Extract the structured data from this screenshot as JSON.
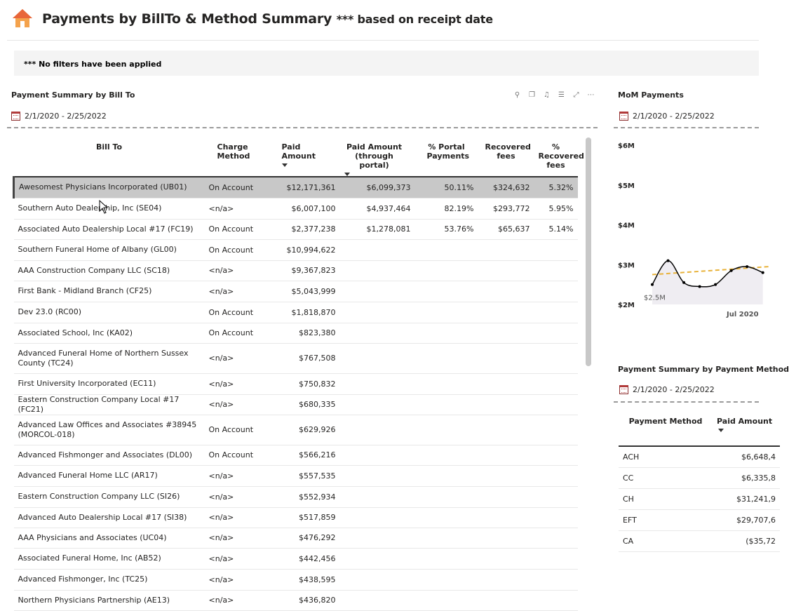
{
  "header": {
    "title_main": "Payments by BillTo & Method  Summary",
    "title_sub": "*** based on receipt date"
  },
  "filter_banner": {
    "text": "*** No filters have been applied"
  },
  "bill_to_visual": {
    "title": "Payment Summary by Bill To",
    "date_range": "2/1/2020 - 2/25/2022",
    "columns": [
      "Bill To",
      "Charge Method",
      "Paid Amount",
      "Paid Amount (through portal)",
      "% Portal Payments",
      "Recovered fees",
      "% Recovered fees"
    ],
    "rows": [
      {
        "bill_to": "Awesomest Physicians Incorporated (UB01)",
        "method": "On Account",
        "paid": "$12,171,361",
        "portal": "$6,099,373",
        "pct_portal": "50.11%",
        "recovered": "$324,632",
        "pct_recovered": "5.32%"
      },
      {
        "bill_to": "Southern Auto Dealership, Inc (SE04)",
        "method": "<n/a>",
        "paid": "$6,007,100",
        "portal": "$4,937,464",
        "pct_portal": "82.19%",
        "recovered": "$293,772",
        "pct_recovered": "5.95%"
      },
      {
        "bill_to": "Associated Auto Dealership Local #17 (FC19)",
        "method": "On Account",
        "paid": "$2,377,238",
        "portal": "$1,278,081",
        "pct_portal": "53.76%",
        "recovered": "$65,637",
        "pct_recovered": "5.14%"
      },
      {
        "bill_to": "Southern Funeral Home of Albany (GL00)",
        "method": "On Account",
        "paid": "$10,994,622",
        "portal": "",
        "pct_portal": "",
        "recovered": "",
        "pct_recovered": ""
      },
      {
        "bill_to": "AAA Construction Company LLC (SC18)",
        "method": "<n/a>",
        "paid": "$9,367,823",
        "portal": "",
        "pct_portal": "",
        "recovered": "",
        "pct_recovered": ""
      },
      {
        "bill_to": "First Bank - Midland Branch (CF25)",
        "method": "<n/a>",
        "paid": "$5,043,999",
        "portal": "",
        "pct_portal": "",
        "recovered": "",
        "pct_recovered": ""
      },
      {
        "bill_to": "Dev 23.0 (RC00)",
        "method": "On Account",
        "paid": "$1,818,870",
        "portal": "",
        "pct_portal": "",
        "recovered": "",
        "pct_recovered": ""
      },
      {
        "bill_to": "Associated School, Inc (KA02)",
        "method": "On Account",
        "paid": "$823,380",
        "portal": "",
        "pct_portal": "",
        "recovered": "",
        "pct_recovered": ""
      },
      {
        "bill_to": "Advanced Funeral Home of Northern Sussex County (TC24)",
        "method": "<n/a>",
        "paid": "$767,508",
        "portal": "",
        "pct_portal": "",
        "recovered": "",
        "pct_recovered": ""
      },
      {
        "bill_to": "First University Incorporated (EC11)",
        "method": "<n/a>",
        "paid": "$750,832",
        "portal": "",
        "pct_portal": "",
        "recovered": "",
        "pct_recovered": ""
      },
      {
        "bill_to": "Eastern Construction Company Local #17 (FC21)",
        "method": "<n/a>",
        "paid": "$680,335",
        "portal": "",
        "pct_portal": "",
        "recovered": "",
        "pct_recovered": ""
      },
      {
        "bill_to": "Advanced Law Offices and Associates #38945 (MORCOL-018)",
        "method": "On Account",
        "paid": "$629,926",
        "portal": "",
        "pct_portal": "",
        "recovered": "",
        "pct_recovered": ""
      },
      {
        "bill_to": "Advanced Fishmonger and Associates (DL00)",
        "method": "On Account",
        "paid": "$566,216",
        "portal": "",
        "pct_portal": "",
        "recovered": "",
        "pct_recovered": ""
      },
      {
        "bill_to": "Advanced Funeral Home LLC (AR17)",
        "method": "<n/a>",
        "paid": "$557,535",
        "portal": "",
        "pct_portal": "",
        "recovered": "",
        "pct_recovered": ""
      },
      {
        "bill_to": "Eastern Construction Company LLC (SI26)",
        "method": "<n/a>",
        "paid": "$552,934",
        "portal": "",
        "pct_portal": "",
        "recovered": "",
        "pct_recovered": ""
      },
      {
        "bill_to": "Advanced Auto Dealership Local #17 (SI38)",
        "method": "<n/a>",
        "paid": "$517,859",
        "portal": "",
        "pct_portal": "",
        "recovered": "",
        "pct_recovered": ""
      },
      {
        "bill_to": "AAA Physicians and Associates (UC04)",
        "method": "<n/a>",
        "paid": "$476,292",
        "portal": "",
        "pct_portal": "",
        "recovered": "",
        "pct_recovered": ""
      },
      {
        "bill_to": "Associated Funeral Home, Inc (AB52)",
        "method": "<n/a>",
        "paid": "$442,456",
        "portal": "",
        "pct_portal": "",
        "recovered": "",
        "pct_recovered": ""
      },
      {
        "bill_to": "Advanced Fishmonger, Inc (TC25)",
        "method": "<n/a>",
        "paid": "$438,595",
        "portal": "",
        "pct_portal": "",
        "recovered": "",
        "pct_recovered": ""
      },
      {
        "bill_to": "Northern Physicians Partnership (AE13)",
        "method": "<n/a>",
        "paid": "$436,820",
        "portal": "",
        "pct_portal": "",
        "recovered": "",
        "pct_recovered": ""
      }
    ]
  },
  "mom_visual": {
    "title": "MoM Payments",
    "date_range": "2/1/2020 - 2/25/2022"
  },
  "chart_data": {
    "type": "line",
    "y_ticks": [
      "$6M",
      "$5M",
      "$4M",
      "$3M",
      "$2M"
    ],
    "ylim": [
      2,
      6
    ],
    "x_tick_label": "Jul 2020",
    "data_label": "$2.5M",
    "series": [
      {
        "values": [
          2.5,
          3.1,
          2.55,
          2.45,
          2.5,
          2.85,
          2.95,
          2.8
        ]
      }
    ],
    "trend": [
      2.75,
      2.95
    ],
    "colors": {
      "line": "#000000",
      "trend": "#E8B23A",
      "area": "#efedf2"
    }
  },
  "method_visual": {
    "title": "Payment Summary by Payment Method",
    "date_range": "2/1/2020 - 2/25/2022",
    "columns": [
      "Payment Method",
      "Paid Amount"
    ],
    "rows": [
      {
        "method": "ACH",
        "paid": "$6,648,4"
      },
      {
        "method": "CC",
        "paid": "$6,335,8"
      },
      {
        "method": "CH",
        "paid": "$31,241,9"
      },
      {
        "method": "EFT",
        "paid": "$29,707,6"
      },
      {
        "method": "CA",
        "paid": "($35,72"
      }
    ]
  }
}
